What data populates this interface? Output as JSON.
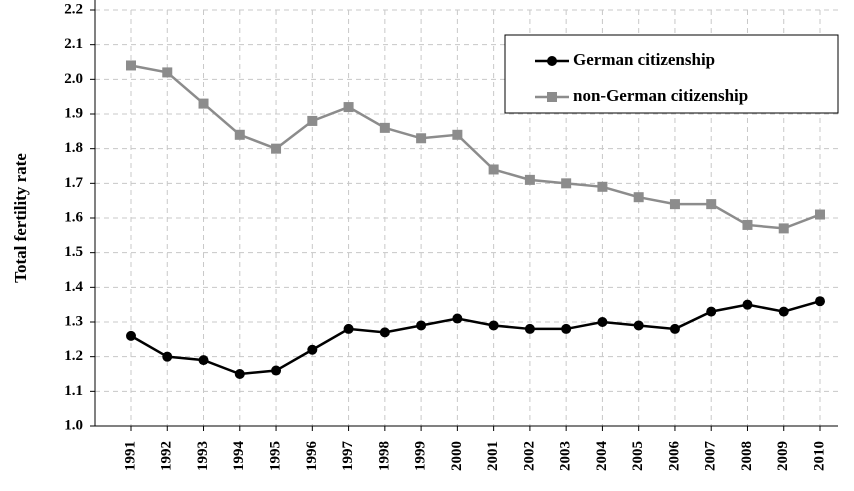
{
  "chart_data": {
    "type": "line",
    "y_label": "Total fertility rate",
    "categories": [
      "1991",
      "1992",
      "1993",
      "1994",
      "1995",
      "1996",
      "1997",
      "1998",
      "1999",
      "2000",
      "2001",
      "2002",
      "2003",
      "2004",
      "2005",
      "2006",
      "2007",
      "2008",
      "2009",
      "2010"
    ],
    "series": [
      {
        "name": "German citizenship",
        "color": "#000000",
        "marker": "circle",
        "values": [
          1.26,
          1.2,
          1.19,
          1.15,
          1.16,
          1.22,
          1.28,
          1.27,
          1.29,
          1.31,
          1.29,
          1.28,
          1.28,
          1.3,
          1.29,
          1.28,
          1.33,
          1.35,
          1.33,
          1.36
        ]
      },
      {
        "name": "non-German citizenship",
        "color": "#8c8c8c",
        "marker": "square",
        "values": [
          2.04,
          2.02,
          1.93,
          1.84,
          1.8,
          1.88,
          1.92,
          1.86,
          1.83,
          1.84,
          1.74,
          1.71,
          1.7,
          1.69,
          1.66,
          1.64,
          1.64,
          1.58,
          1.57,
          1.61
        ]
      }
    ],
    "ylim": [
      1.0,
      2.2
    ],
    "yticks": [
      {
        "value": 1,
        "label": "1.0"
      },
      1.1,
      1.2,
      1.3,
      1.4,
      1.5,
      1.6,
      1.7,
      1.8,
      1.9,
      {
        "value": 2,
        "label": "2.0"
      },
      2.1,
      2.2
    ],
    "grid": true,
    "legend": "top-right"
  }
}
